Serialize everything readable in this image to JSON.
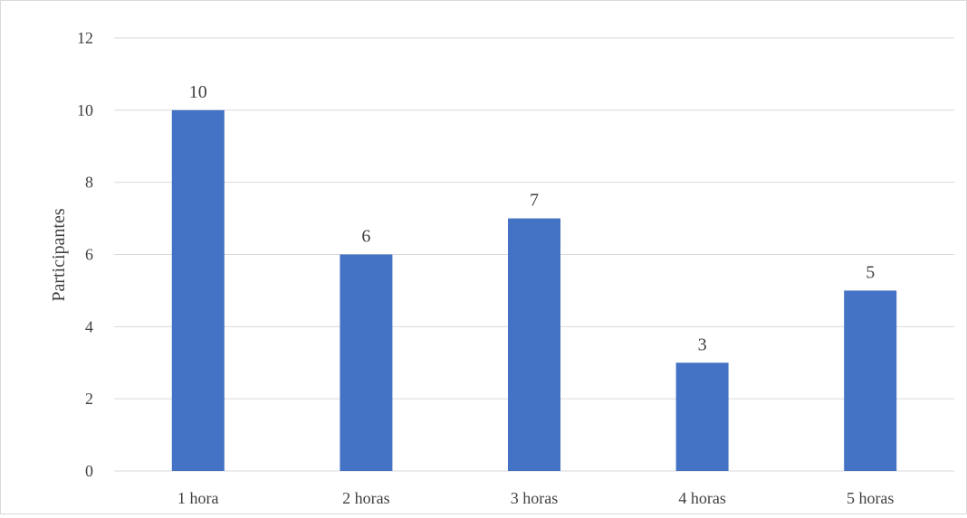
{
  "chart_data": {
    "type": "bar",
    "categories": [
      "1 hora",
      "2 horas",
      "3 horas",
      "4 horas",
      "5 horas"
    ],
    "values": [
      10,
      6,
      7,
      3,
      5
    ],
    "data_labels": [
      "10",
      "6",
      "7",
      "3",
      "5"
    ],
    "ylabel": "Participantes",
    "ylim": [
      0,
      12
    ],
    "yticks": [
      "0",
      "2",
      "4",
      "6",
      "8",
      "10",
      "12"
    ],
    "grid": true,
    "bar_color": "#4472c4",
    "grid_color": "#d9d9d9"
  }
}
